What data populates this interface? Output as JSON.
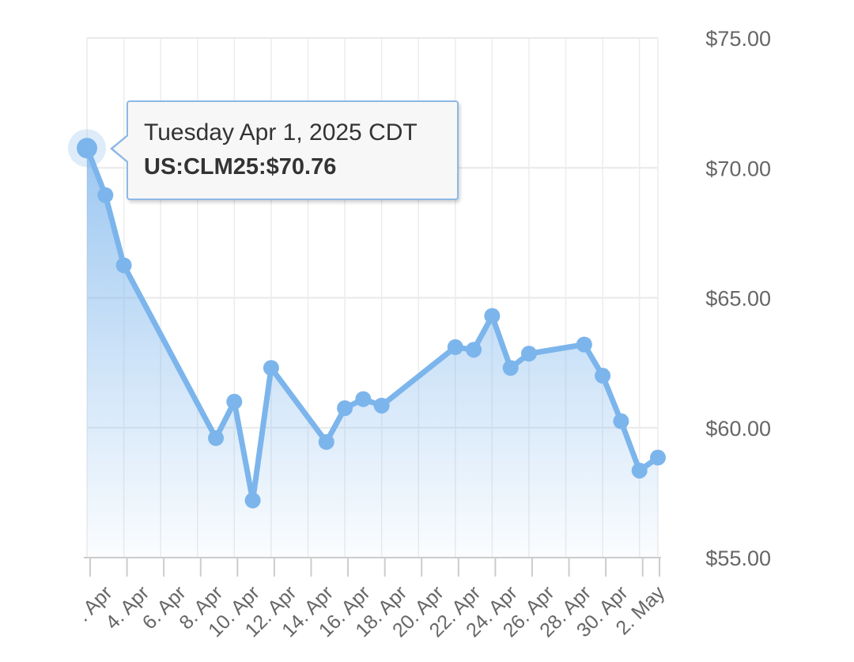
{
  "chart_data": {
    "type": "area",
    "x": [
      "1. Apr",
      "2. Apr",
      "3. Apr",
      "8. Apr",
      "9. Apr",
      "10. Apr",
      "11. Apr",
      "14. Apr",
      "15. Apr",
      "16. Apr",
      "17. Apr",
      "21. Apr",
      "22. Apr",
      "23. Apr",
      "24. Apr",
      "25. Apr",
      "28. Apr",
      "29. Apr",
      "30. Apr",
      "1. May",
      "2. May"
    ],
    "values": [
      70.76,
      68.95,
      66.25,
      59.6,
      61.0,
      57.2,
      62.3,
      59.45,
      60.75,
      61.1,
      60.85,
      63.1,
      63.0,
      64.3,
      62.3,
      62.85,
      63.2,
      62.0,
      60.25,
      58.35,
      58.85
    ],
    "xticks": [
      ". Apr",
      "4. Apr",
      "6. Apr",
      "8. Apr",
      "10. Apr",
      "12. Apr",
      "14. Apr",
      "16. Apr",
      "18. Apr",
      "20. Apr",
      "22. Apr",
      "24. Apr",
      "26. Apr",
      "28. Apr",
      "30. Apr",
      "2. May"
    ],
    "yticks": [
      "$75.00",
      "$70.00",
      "$65.00",
      "$60.00",
      "$55.00"
    ],
    "ylim": [
      55,
      75
    ],
    "grid": true,
    "line_color": "#7cb5ec",
    "tooltip": {
      "date": "Tuesday Apr 1, 2025 CDT",
      "value": "US:CLM25:$70.76"
    }
  }
}
